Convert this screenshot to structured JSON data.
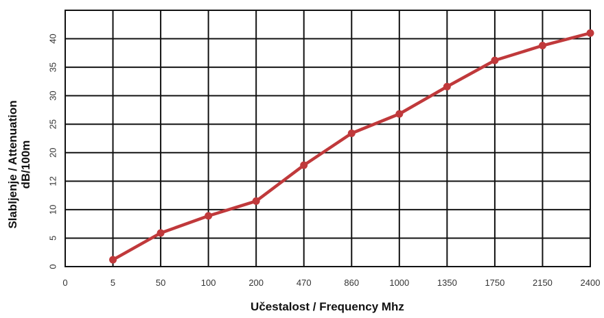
{
  "chart_data": {
    "type": "line",
    "categories": [
      "0",
      "5",
      "50",
      "100",
      "200",
      "470",
      "860",
      "1000",
      "1350",
      "1750",
      "2150",
      "2400"
    ],
    "series": [
      {
        "values": [
          null,
          1.2,
          5.9,
          8.9,
          11.5,
          17.8,
          23.4,
          26.8,
          31.6,
          36.2,
          38.8,
          41.0
        ],
        "color": "#c0393b"
      }
    ],
    "y_ticks": [
      "0",
      "5",
      "10",
      "12",
      "20",
      "25",
      "30",
      "35",
      "40"
    ],
    "ylim": [
      0,
      45
    ],
    "xlabel": "Učestalost / Frequency Mhz",
    "ylabel_line1": "Slabljenje / Attenuation",
    "ylabel_line2": "dB/100m",
    "grid": true,
    "legend": "none"
  }
}
